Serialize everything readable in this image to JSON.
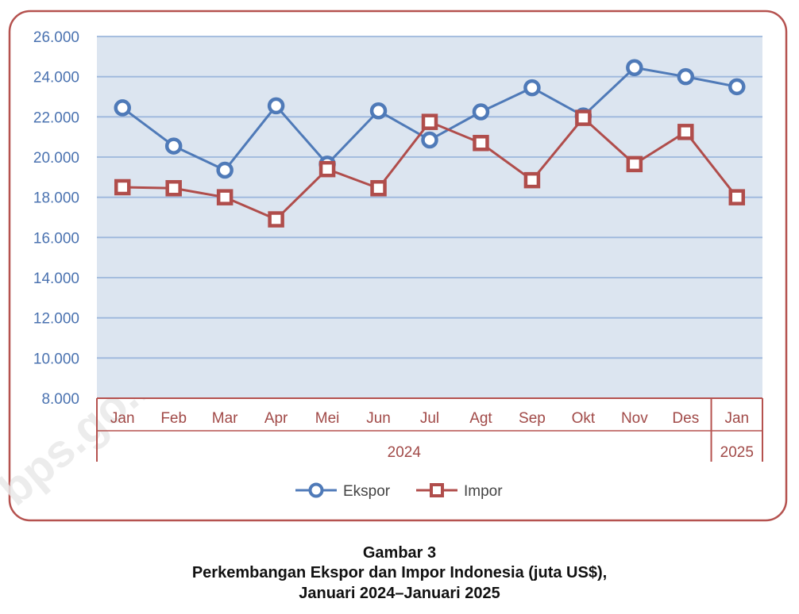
{
  "caption": {
    "label": "Gambar 3",
    "title_line1": "Perkembangan Ekspor dan Impor Indonesia (juta US$),",
    "title_line2": "Januari 2024–Januari 2025"
  },
  "watermark": "bps.go.id",
  "chart_data": {
    "type": "line",
    "categories": [
      "Jan",
      "Feb",
      "Mar",
      "Apr",
      "Mei",
      "Jun",
      "Jul",
      "Agt",
      "Sep",
      "Okt",
      "Nov",
      "Des",
      "Jan"
    ],
    "year_groups": [
      {
        "label": "2024",
        "count": 12
      },
      {
        "label": "2025",
        "count": 1
      }
    ],
    "ylim": [
      8000,
      26000
    ],
    "yticks": [
      8000,
      10000,
      12000,
      14000,
      16000,
      18000,
      20000,
      22000,
      24000,
      26000
    ],
    "ytick_labels": [
      "8.000",
      "10.000",
      "12.000",
      "14.000",
      "16.000",
      "18.000",
      "20.000",
      "22.000",
      "24.000",
      "26.000"
    ],
    "grid": true,
    "legend_position": "bottom",
    "series": [
      {
        "name": "Ekspor",
        "color": "#4f7ab8",
        "marker": "circle",
        "values": [
          22450,
          20550,
          19350,
          22550,
          19650,
          22300,
          20850,
          22250,
          23450,
          22050,
          24450,
          24000,
          23500
        ]
      },
      {
        "name": "Impor",
        "color": "#b04d4b",
        "marker": "square",
        "values": [
          18500,
          18450,
          18000,
          16900,
          19400,
          18450,
          21750,
          20700,
          18850,
          21950,
          19650,
          21250,
          18000
        ]
      }
    ],
    "colors": {
      "plot_background": "#dce5f0",
      "grid": "#9db7dc",
      "frame": "#b5524f",
      "tick_label_y": "#4a72b0",
      "tick_label_x": "#a14a48"
    }
  }
}
